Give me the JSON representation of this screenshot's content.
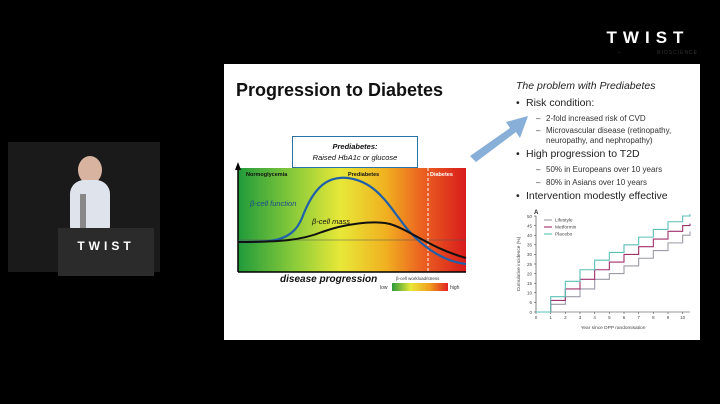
{
  "brand": {
    "word": "TWIST",
    "sub": "BIOSCIENCE"
  },
  "slide": {
    "title": "Progression to Diabetes",
    "prediabetes_box": {
      "line1": "Prediabetes:",
      "line2": "Raised HbA1c or glucose"
    },
    "main_chart": {
      "zone_labels": [
        "Normoglycemia",
        "Prediabetes",
        "Diabetes"
      ],
      "curve_labels": [
        "β-cell function",
        "β-cell mass"
      ],
      "x_label": "disease progression",
      "stress_label": "β-cell workload/stress",
      "low": "low",
      "high": "high"
    },
    "problem": {
      "title": "The problem with Prediabetes",
      "bullets": [
        {
          "text": "Risk condition:",
          "subs": [
            "2-fold increased risk of CVD",
            "Microvascular disease (retinopathy,",
            "neuropathy, and nephropathy)"
          ]
        },
        {
          "text": "High progression to T2D",
          "subs": [
            "50% in Europeans over 10 years",
            "80% in Asians over 10 years"
          ]
        },
        {
          "text": "Intervention modestly effective",
          "subs": []
        }
      ]
    }
  },
  "chart_data": {
    "type": "line",
    "panel_label": "A",
    "xlabel": "Year since DPP randomisation",
    "ylabel": "Cumulative incidence (%)",
    "xlim": [
      0,
      10.5
    ],
    "ylim": [
      0,
      50
    ],
    "x_ticks": [
      0,
      1,
      2,
      3,
      4,
      5,
      6,
      7,
      8,
      9,
      10
    ],
    "y_ticks": [
      0,
      5,
      10,
      15,
      20,
      25,
      30,
      35,
      40,
      45,
      50
    ],
    "series": [
      {
        "name": "Lifestyle",
        "color": "#9a9aa8",
        "x": [
          0,
          1,
          2,
          3,
          4,
          5,
          6,
          7,
          8,
          9,
          10,
          10.5
        ],
        "y": [
          0,
          4,
          8,
          12,
          17,
          20,
          24,
          28,
          32,
          36,
          40,
          42
        ]
      },
      {
        "name": "Metformin",
        "color": "#a0306a",
        "x": [
          0,
          1,
          2,
          3,
          4,
          5,
          6,
          7,
          8,
          9,
          10,
          10.5
        ],
        "y": [
          0,
          6,
          12,
          17,
          22,
          26,
          30,
          34,
          38,
          42,
          45,
          46
        ]
      },
      {
        "name": "Placebo",
        "color": "#5ac0b8",
        "x": [
          0,
          1,
          2,
          3,
          4,
          5,
          6,
          7,
          8,
          9,
          10,
          10.5
        ],
        "y": [
          0,
          8,
          16,
          22,
          27,
          31,
          35,
          39,
          43,
          47,
          50,
          51
        ]
      }
    ]
  }
}
